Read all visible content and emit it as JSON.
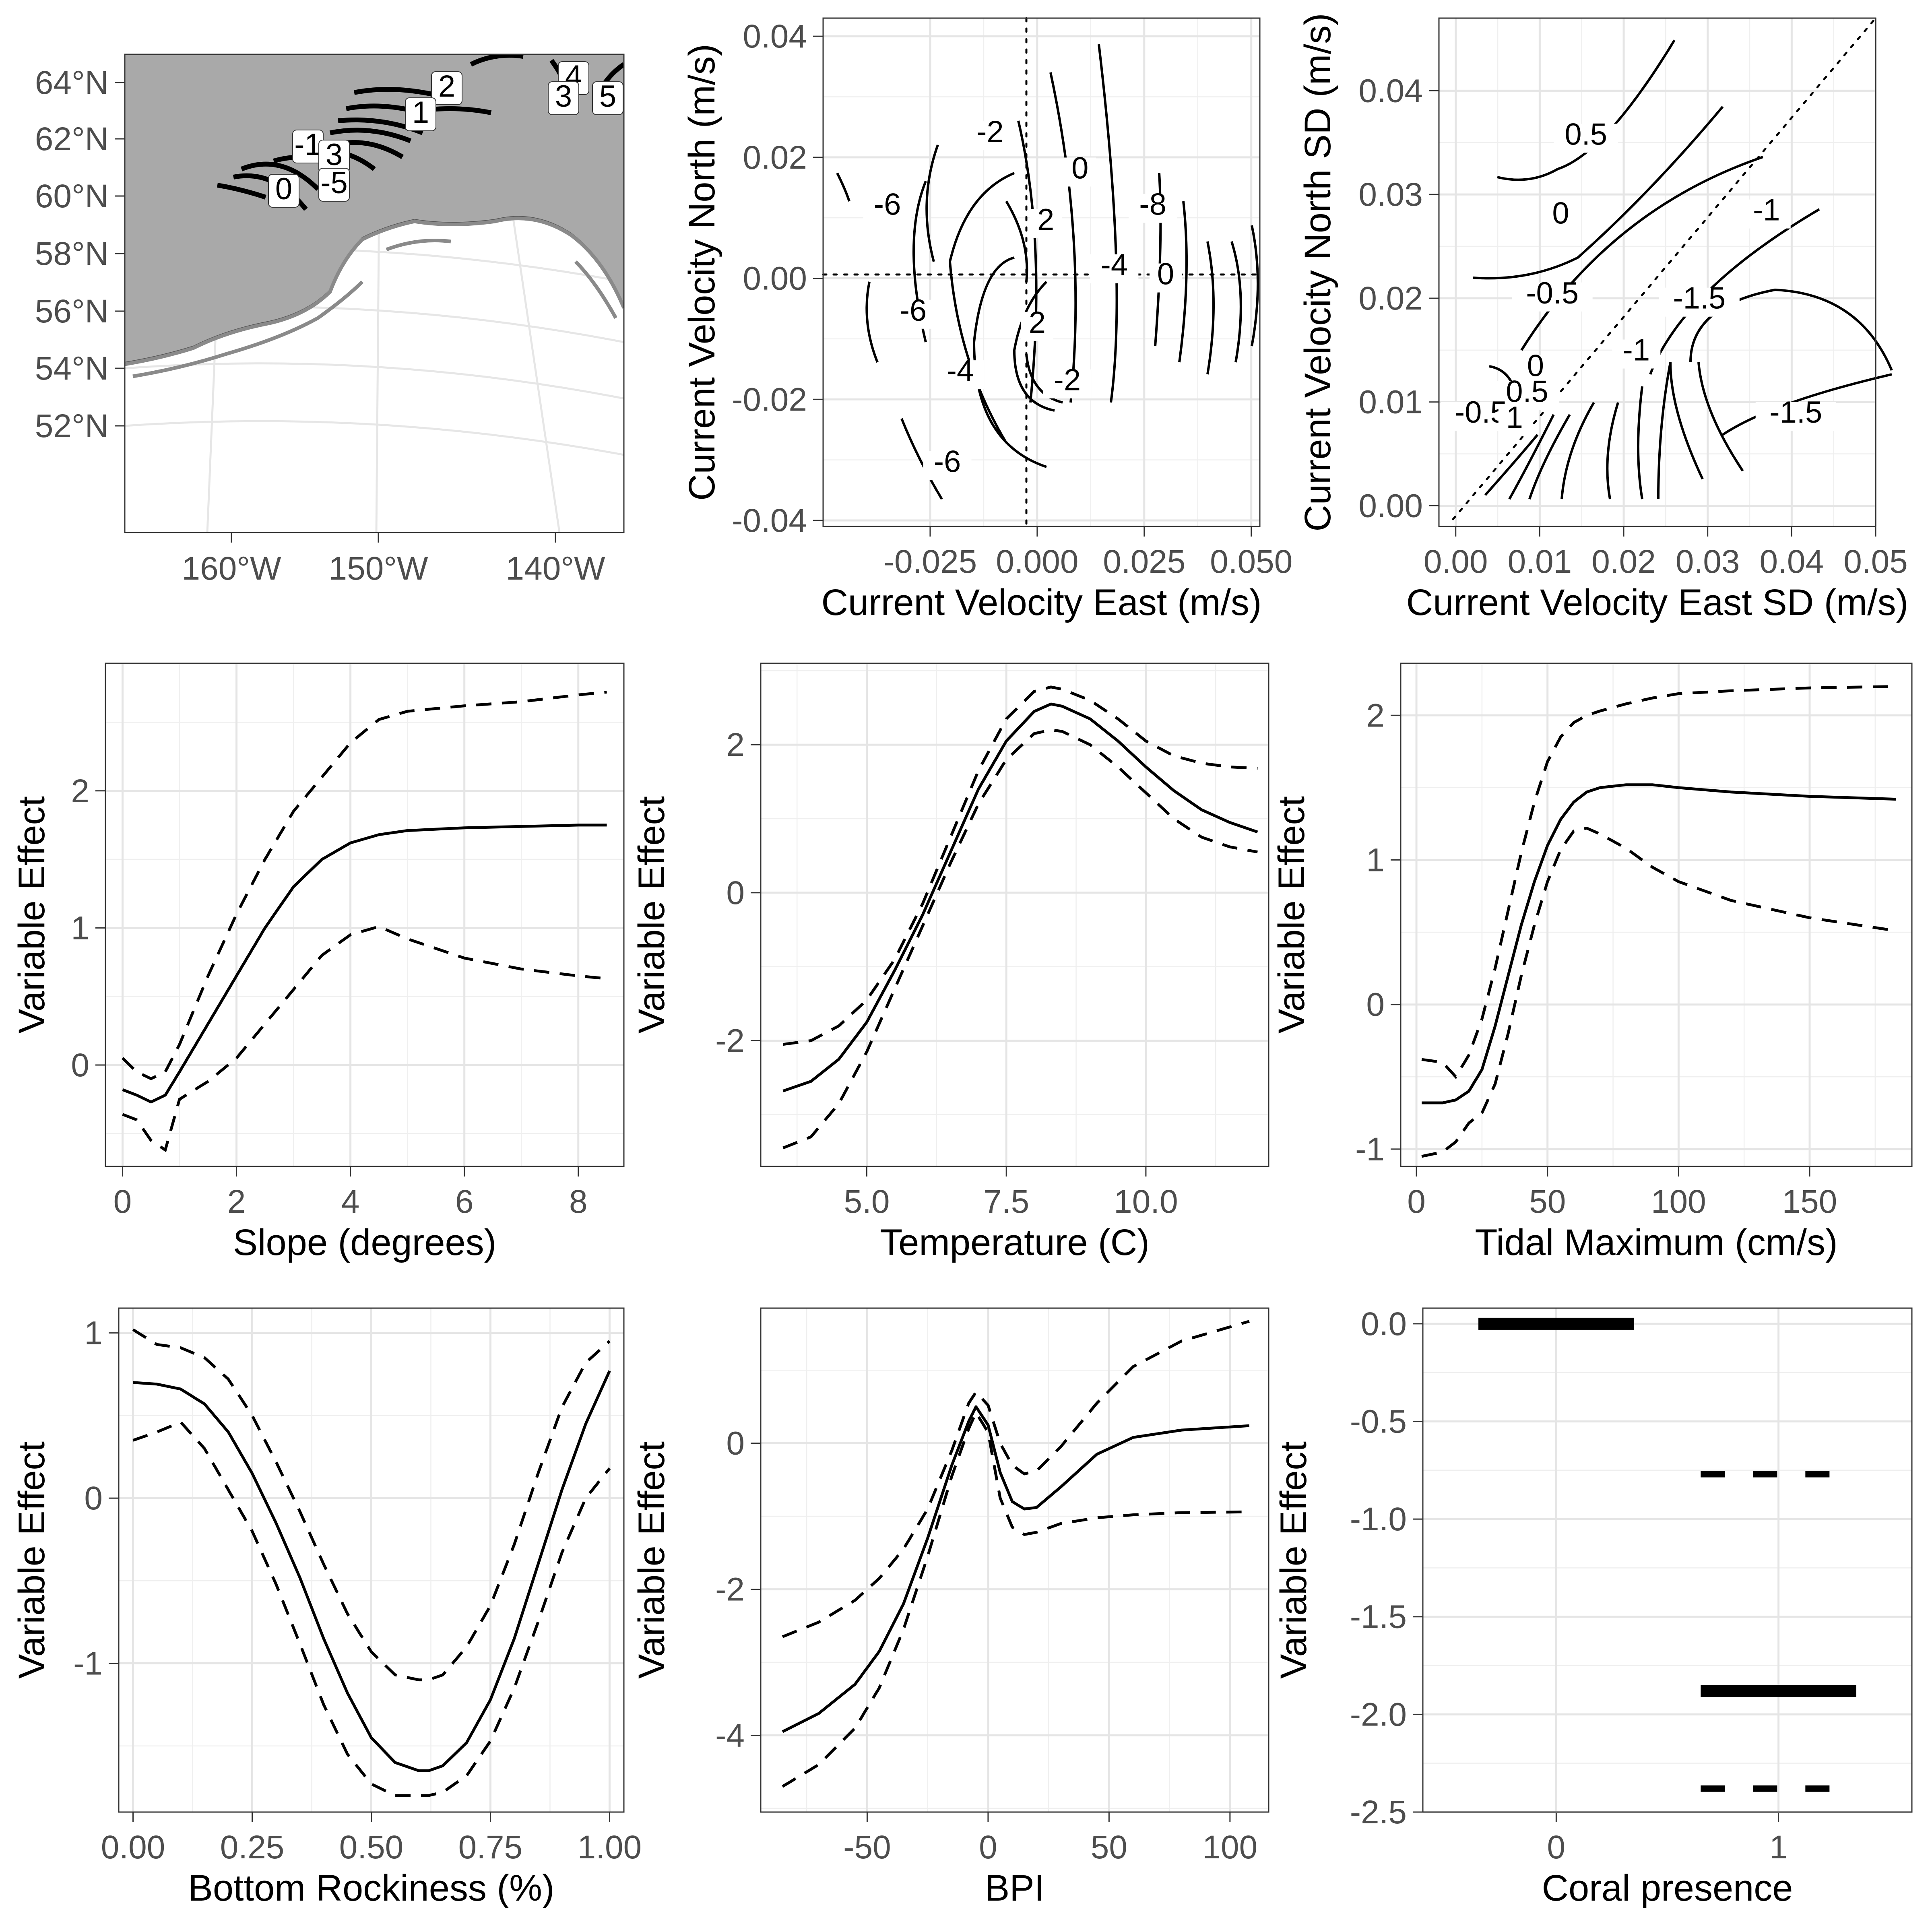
{
  "chart_data": [
    {
      "id": "map",
      "type": "contour",
      "xticks": [
        "160°W",
        "150°W",
        "140°W"
      ],
      "yticks": [
        "64°N",
        "62°N",
        "60°N",
        "58°N",
        "56°N",
        "54°N",
        "52°N"
      ],
      "contour_labels": [
        "2",
        "1",
        "-1",
        "3",
        "0",
        "-5",
        "4",
        "3",
        "5"
      ]
    },
    {
      "id": "current-velocity",
      "type": "contour",
      "xlabel": "Current Velocity East (m/s)",
      "ylabel": "Current Velocity North (m/s)",
      "xlim": [
        -0.05,
        0.052
      ],
      "ylim": [
        -0.041,
        0.043
      ],
      "xticks": [
        "-0.025",
        "0.000",
        "0.025",
        "0.050"
      ],
      "yticks": [
        "0.04",
        "0.02",
        "0.00",
        "-0.02",
        "-0.04"
      ],
      "contour_labels": [
        {
          "text": "-2",
          "x": -0.011,
          "y": 0.0225
        },
        {
          "text": "-6",
          "x": -0.035,
          "y": 0.0105
        },
        {
          "text": "0",
          "x": 0.01,
          "y": 0.0165
        },
        {
          "text": "2",
          "x": 0.002,
          "y": 0.008
        },
        {
          "text": "-8",
          "x": 0.027,
          "y": 0.0105
        },
        {
          "text": "-4",
          "x": 0.018,
          "y": 0.0005
        },
        {
          "text": "0",
          "x": 0.03,
          "y": -0.001
        },
        {
          "text": "-6",
          "x": -0.029,
          "y": -0.007
        },
        {
          "text": "2",
          "x": 0.0,
          "y": -0.009
        },
        {
          "text": "-4",
          "x": -0.018,
          "y": -0.017
        },
        {
          "text": "-2",
          "x": 0.007,
          "y": -0.0185
        },
        {
          "text": "-6",
          "x": -0.021,
          "y": -0.032
        }
      ]
    },
    {
      "id": "current-velocity-sd",
      "type": "contour",
      "xlabel": "Current Velocity East SD (m/s)",
      "ylabel": "Current Velocity North SD (m/s)",
      "xlim": [
        -0.002,
        0.05
      ],
      "ylim": [
        -0.002,
        0.047
      ],
      "xticks": [
        "0.00",
        "0.01",
        "0.02",
        "0.03",
        "0.04",
        "0.05"
      ],
      "yticks": [
        "0.04",
        "0.03",
        "0.02",
        "0.01",
        "0.00"
      ],
      "contour_labels": [
        {
          "text": "0.5",
          "x": 0.0155,
          "y": 0.0348
        },
        {
          "text": "0",
          "x": 0.0125,
          "y": 0.0272
        },
        {
          "text": "-1",
          "x": 0.037,
          "y": 0.0275
        },
        {
          "text": "-0.5",
          "x": 0.0115,
          "y": 0.0195
        },
        {
          "text": "-1.5",
          "x": 0.029,
          "y": 0.019
        },
        {
          "text": "-1",
          "x": 0.0215,
          "y": 0.014
        },
        {
          "text": "-1.5",
          "x": 0.0405,
          "y": 0.008
        },
        {
          "text": "0",
          "x": 0.0095,
          "y": 0.0125
        },
        {
          "text": "0.5",
          "x": 0.0085,
          "y": 0.01
        },
        {
          "text": "-0.5",
          "x": 0.003,
          "y": 0.008
        },
        {
          "text": "1",
          "x": 0.007,
          "y": 0.0075
        }
      ]
    },
    {
      "id": "slope",
      "type": "line",
      "xlabel": "Slope (degrees)",
      "ylabel": "Variable Effect",
      "xlim": [
        -0.3,
        8.8
      ],
      "ylim": [
        -0.74,
        2.93
      ],
      "xticks": [
        "0",
        "2",
        "4",
        "6",
        "8"
      ],
      "yticks": [
        "0",
        "1",
        "2"
      ],
      "x": [
        0,
        0.25,
        0.5,
        0.75,
        1,
        1.5,
        2,
        2.5,
        3,
        3.5,
        4,
        4.5,
        5,
        6,
        7,
        8,
        8.5
      ],
      "fit": [
        -0.18,
        -0.22,
        -0.27,
        -0.22,
        -0.05,
        0.3,
        0.65,
        1.0,
        1.3,
        1.5,
        1.62,
        1.68,
        1.71,
        1.73,
        1.74,
        1.75,
        1.75
      ],
      "upper": [
        0.05,
        -0.05,
        -0.1,
        -0.05,
        0.15,
        0.65,
        1.1,
        1.5,
        1.85,
        2.1,
        2.35,
        2.52,
        2.58,
        2.62,
        2.65,
        2.7,
        2.72
      ],
      "lower": [
        -0.36,
        -0.4,
        -0.55,
        -0.62,
        -0.25,
        -0.12,
        0.05,
        0.3,
        0.55,
        0.8,
        0.95,
        1.01,
        0.92,
        0.78,
        0.7,
        0.65,
        0.63
      ]
    },
    {
      "id": "temperature",
      "type": "line",
      "xlabel": "Temperature (C)",
      "ylabel": "Variable Effect",
      "xlim": [
        3.1,
        12.2
      ],
      "ylim": [
        -3.7,
        3.1
      ],
      "xticks": [
        "5.0",
        "7.5",
        "10.0"
      ],
      "yticks": [
        "2",
        "0",
        "-2"
      ],
      "x": [
        3.5,
        4,
        4.5,
        5,
        5.5,
        6,
        6.5,
        7,
        7.5,
        8,
        8.3,
        8.5,
        9,
        9.5,
        10,
        10.5,
        11,
        11.5,
        12
      ],
      "fit": [
        -2.68,
        -2.55,
        -2.25,
        -1.75,
        -1.05,
        -0.3,
        0.55,
        1.4,
        2.05,
        2.45,
        2.55,
        2.52,
        2.35,
        2.05,
        1.7,
        1.38,
        1.12,
        0.95,
        0.82
      ],
      "upper": [
        -2.05,
        -2.0,
        -1.8,
        -1.45,
        -0.9,
        -0.15,
        0.75,
        1.65,
        2.35,
        2.72,
        2.78,
        2.75,
        2.6,
        2.35,
        2.05,
        1.85,
        1.75,
        1.7,
        1.68
      ],
      "lower": [
        -3.45,
        -3.3,
        -2.85,
        -2.15,
        -1.3,
        -0.45,
        0.4,
        1.2,
        1.8,
        2.15,
        2.2,
        2.18,
        2.0,
        1.7,
        1.35,
        1.0,
        0.75,
        0.62,
        0.55
      ]
    },
    {
      "id": "tidal-maximum",
      "type": "line",
      "xlabel": "Tidal Maximum (cm/s)",
      "ylabel": "Variable Effect",
      "xlim": [
        -6,
        189
      ],
      "ylim": [
        -1.12,
        2.36
      ],
      "xticks": [
        "0",
        "50",
        "100",
        "150"
      ],
      "yticks": [
        "2",
        "1",
        "0",
        "-1"
      ],
      "x": [
        2,
        10,
        15,
        20,
        25,
        30,
        35,
        40,
        45,
        50,
        55,
        60,
        65,
        70,
        80,
        90,
        100,
        120,
        150,
        183
      ],
      "fit": [
        -0.68,
        -0.68,
        -0.66,
        -0.6,
        -0.45,
        -0.15,
        0.2,
        0.55,
        0.85,
        1.1,
        1.28,
        1.4,
        1.47,
        1.5,
        1.52,
        1.52,
        1.5,
        1.47,
        1.44,
        1.42
      ],
      "upper": [
        -0.38,
        -0.4,
        -0.5,
        -0.35,
        -0.1,
        0.25,
        0.65,
        1.05,
        1.4,
        1.68,
        1.85,
        1.95,
        2.0,
        2.03,
        2.08,
        2.12,
        2.15,
        2.17,
        2.19,
        2.2
      ],
      "lower": [
        -1.05,
        -1.02,
        -0.95,
        -0.82,
        -0.75,
        -0.55,
        -0.2,
        0.2,
        0.55,
        0.85,
        1.07,
        1.2,
        1.22,
        1.18,
        1.08,
        0.95,
        0.85,
        0.72,
        0.6,
        0.51
      ]
    },
    {
      "id": "bottom-rockiness",
      "type": "line",
      "xlabel": "Bottom Rockiness (%)",
      "ylabel": "Variable Effect",
      "xlim": [
        -0.03,
        1.03
      ],
      "ylim": [
        -1.9,
        1.15
      ],
      "xticks": [
        "0.00",
        "0.25",
        "0.50",
        "0.75",
        "1.00"
      ],
      "yticks": [
        "1",
        "0",
        "-1"
      ],
      "x": [
        0,
        0.05,
        0.1,
        0.15,
        0.2,
        0.25,
        0.3,
        0.35,
        0.4,
        0.45,
        0.5,
        0.55,
        0.6,
        0.62,
        0.65,
        0.7,
        0.75,
        0.8,
        0.85,
        0.9,
        0.95,
        1.0
      ],
      "fit": [
        0.7,
        0.69,
        0.66,
        0.57,
        0.4,
        0.15,
        -0.15,
        -0.48,
        -0.85,
        -1.18,
        -1.45,
        -1.6,
        -1.65,
        -1.65,
        -1.62,
        -1.48,
        -1.22,
        -0.85,
        -0.4,
        0.05,
        0.45,
        0.77
      ],
      "upper": [
        1.02,
        0.93,
        0.91,
        0.85,
        0.72,
        0.5,
        0.22,
        -0.08,
        -0.4,
        -0.7,
        -0.93,
        -1.07,
        -1.1,
        -1.1,
        -1.07,
        -0.9,
        -0.65,
        -0.28,
        0.15,
        0.55,
        0.82,
        0.95
      ],
      "lower": [
        0.35,
        0.4,
        0.46,
        0.3,
        0.05,
        -0.2,
        -0.52,
        -0.88,
        -1.25,
        -1.55,
        -1.73,
        -1.8,
        -1.8,
        -1.8,
        -1.78,
        -1.68,
        -1.47,
        -1.15,
        -0.75,
        -0.33,
        0.0,
        0.18
      ]
    },
    {
      "id": "bpi",
      "type": "line",
      "xlabel": "BPI",
      "ylabel": "Variable Effect",
      "xlim": [
        -94,
        116
      ],
      "ylim": [
        -5.05,
        1.85
      ],
      "xticks": [
        "-50",
        "0",
        "50",
        "100"
      ],
      "yticks": [
        "0",
        "-2",
        "-4"
      ],
      "x": [
        -85,
        -70,
        -55,
        -45,
        -35,
        -25,
        -15,
        -8,
        -5,
        0,
        5,
        10,
        15,
        20,
        30,
        45,
        60,
        80,
        108
      ],
      "fit": [
        -3.95,
        -3.7,
        -3.3,
        -2.85,
        -2.2,
        -1.3,
        -0.3,
        0.3,
        0.5,
        0.25,
        -0.4,
        -0.8,
        -0.9,
        -0.88,
        -0.6,
        -0.15,
        0.08,
        0.18,
        0.24
      ],
      "upper": [
        -2.65,
        -2.45,
        -2.15,
        -1.85,
        -1.45,
        -0.9,
        -0.1,
        0.55,
        0.7,
        0.52,
        0.0,
        -0.3,
        -0.42,
        -0.38,
        -0.05,
        0.55,
        1.05,
        1.4,
        1.67
      ],
      "lower": [
        -4.7,
        -4.4,
        -3.9,
        -3.35,
        -2.55,
        -1.55,
        -0.45,
        0.2,
        0.42,
        0.15,
        -0.75,
        -1.15,
        -1.25,
        -1.22,
        -1.1,
        -1.02,
        -0.98,
        -0.95,
        -0.94
      ]
    },
    {
      "id": "coral-presence",
      "type": "factor",
      "xlabel": "Coral presence",
      "ylabel": "Variable Effect",
      "xlim": [
        -0.6,
        1.6
      ],
      "ylim": [
        -2.5,
        0.08
      ],
      "xticks": [
        "0",
        "1"
      ],
      "yticks": [
        "0.0",
        "-0.5",
        "-1.0",
        "-1.5",
        "-2.0",
        "-2.5"
      ],
      "levels": [
        0,
        1
      ],
      "fit": [
        0.0,
        -1.88
      ],
      "upper": [
        null,
        -0.77
      ],
      "lower": [
        null,
        -2.38
      ]
    }
  ]
}
